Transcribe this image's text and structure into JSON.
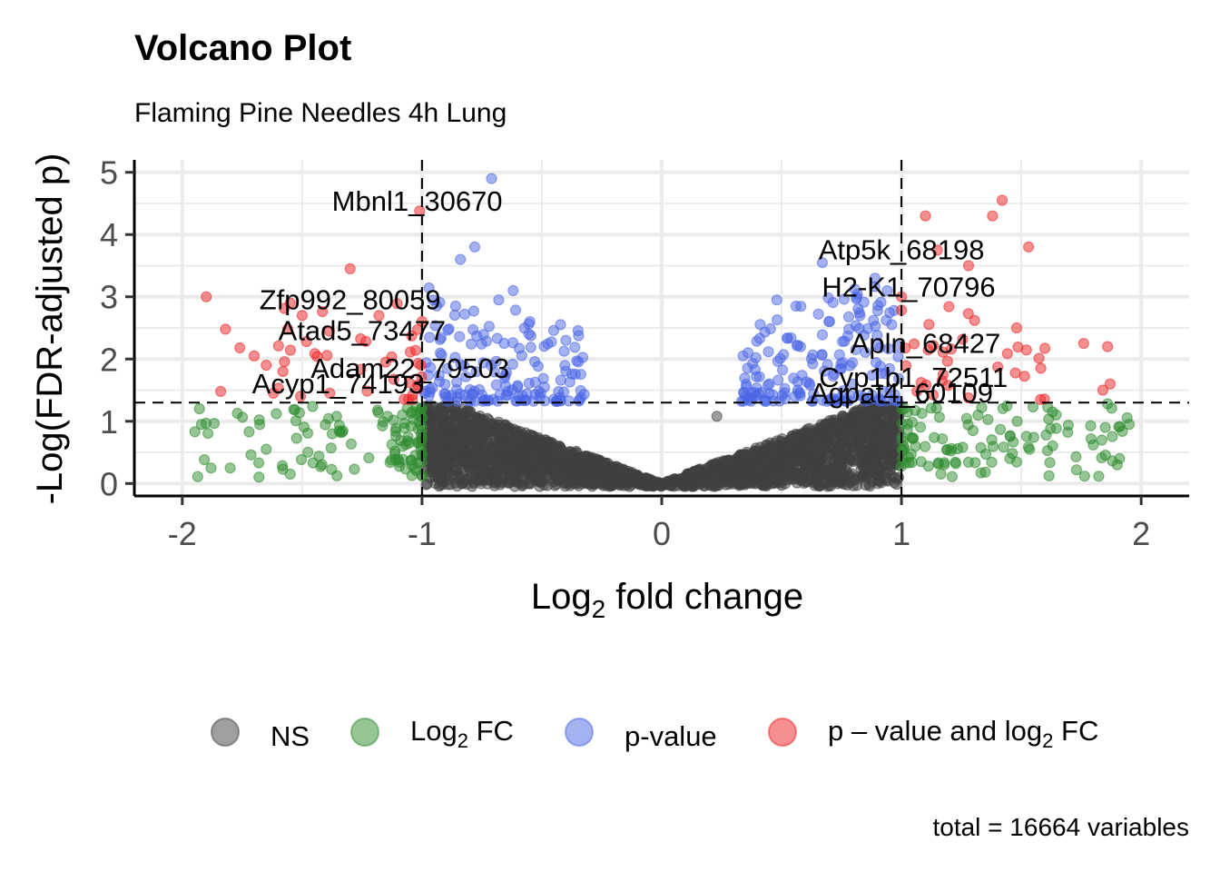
{
  "chart_data": {
    "type": "scatter",
    "title": "Volcano Plot",
    "subtitle": "Flaming Pine Needles 4h Lung",
    "xlabel_prefix": "Log",
    "xlabel_sub": "2",
    "xlabel_suffix": " fold change",
    "ylabel": "-Log(FDR-adjusted p)",
    "xlim": [
      -2.2,
      2.2
    ],
    "ylim": [
      -0.2,
      5.2
    ],
    "x_ticks": [
      -2,
      -1,
      0,
      1,
      2
    ],
    "y_ticks": [
      0,
      1,
      2,
      3,
      4,
      5
    ],
    "x_tick_labels": [
      "-2",
      "-1",
      "0",
      "1",
      "2"
    ],
    "y_tick_labels": [
      "0",
      "1",
      "2",
      "3",
      "4",
      "5"
    ],
    "grid": true,
    "fc_cutoff": 1,
    "p_cutoff": 1.3,
    "colors": {
      "NS": "#3f3f3f",
      "FC": "#2e8b2e",
      "P": "#4a66e6",
      "FC_P": "#ee2222"
    },
    "legend_position": "bottom",
    "legend": {
      "ns": "NS",
      "fc_prefix": "Log",
      "fc_sub": "2",
      "fc_suffix": " FC",
      "p": "p-value",
      "both_prefix": "p – value and log",
      "both_sub": "2",
      "both_suffix": " FC"
    },
    "caption": "total = 16664 variables",
    "labeled_genes": [
      {
        "label": "Mbnl1_30670",
        "x": -1.02,
        "y": 4.38
      },
      {
        "label": "Zfp992_80059",
        "x": -1.3,
        "y": 2.8
      },
      {
        "label": "Atad5_73477",
        "x": -1.25,
        "y": 2.3
      },
      {
        "label": "Adam22_79503",
        "x": -1.05,
        "y": 1.7
      },
      {
        "label": "Acyp1_74193",
        "x": -1.35,
        "y": 1.45
      },
      {
        "label": "Atp5k_68198",
        "x": 1.0,
        "y": 3.6
      },
      {
        "label": "H2-K1_70796",
        "x": 1.03,
        "y": 3.0
      },
      {
        "label": "Apln_68427",
        "x": 1.1,
        "y": 2.1
      },
      {
        "label": "Cyp1b1_72511",
        "x": 1.05,
        "y": 1.55
      },
      {
        "label": "Agpat4_60109",
        "x": 1.0,
        "y": 1.3
      }
    ],
    "highlight_points": [
      {
        "x": -0.71,
        "y": 4.9,
        "group": "P"
      },
      {
        "x": -0.78,
        "y": 3.8,
        "group": "P"
      },
      {
        "x": -0.84,
        "y": 3.6,
        "group": "P"
      },
      {
        "x": -0.62,
        "y": 3.1,
        "group": "P"
      },
      {
        "x": -0.68,
        "y": 2.95,
        "group": "P"
      },
      {
        "x": -0.86,
        "y": 2.85,
        "group": "P"
      },
      {
        "x": -0.55,
        "y": 2.6,
        "group": "P"
      },
      {
        "x": -0.4,
        "y": 2.3,
        "group": "P"
      },
      {
        "x": 0.67,
        "y": 3.55,
        "group": "P"
      },
      {
        "x": 0.48,
        "y": 2.95,
        "group": "P"
      },
      {
        "x": 0.56,
        "y": 2.85,
        "group": "P"
      },
      {
        "x": 0.7,
        "y": 2.6,
        "group": "P"
      },
      {
        "x": 0.36,
        "y": 2.1,
        "group": "P"
      },
      {
        "x": 0.23,
        "y": 1.08,
        "group": "NS"
      },
      {
        "x": -1.01,
        "y": 4.38,
        "group": "FC_P"
      },
      {
        "x": -1.3,
        "y": 3.45,
        "group": "FC_P"
      },
      {
        "x": -1.9,
        "y": 3.0,
        "group": "FC_P"
      },
      {
        "x": -1.82,
        "y": 2.48,
        "group": "FC_P"
      },
      {
        "x": -1.76,
        "y": 2.18,
        "group": "FC_P"
      },
      {
        "x": -1.7,
        "y": 2.05,
        "group": "FC_P"
      },
      {
        "x": -1.65,
        "y": 1.9,
        "group": "FC_P"
      },
      {
        "x": -1.58,
        "y": 1.8,
        "group": "FC_P"
      },
      {
        "x": -1.5,
        "y": 2.7,
        "group": "FC_P"
      },
      {
        "x": -1.55,
        "y": 2.9,
        "group": "FC_P"
      },
      {
        "x": -1.84,
        "y": 1.48,
        "group": "FC_P"
      },
      {
        "x": -1.62,
        "y": 1.45,
        "group": "FC_P"
      },
      {
        "x": 1.42,
        "y": 4.55,
        "group": "FC_P"
      },
      {
        "x": 1.38,
        "y": 4.3,
        "group": "FC_P"
      },
      {
        "x": 1.1,
        "y": 4.3,
        "group": "FC_P"
      },
      {
        "x": 1.53,
        "y": 3.8,
        "group": "FC_P"
      },
      {
        "x": 1.28,
        "y": 3.5,
        "group": "FC_P"
      },
      {
        "x": 1.15,
        "y": 3.75,
        "group": "FC_P"
      },
      {
        "x": 1.76,
        "y": 2.25,
        "group": "FC_P"
      },
      {
        "x": 1.86,
        "y": 2.2,
        "group": "FC_P"
      },
      {
        "x": 1.87,
        "y": 1.6,
        "group": "FC_P"
      },
      {
        "x": 1.84,
        "y": 1.5,
        "group": "FC_P"
      },
      {
        "x": 1.58,
        "y": 1.35,
        "group": "FC_P"
      },
      {
        "x": 1.48,
        "y": 2.5,
        "group": "FC_P"
      },
      {
        "x": 1.0,
        "y": 3.0,
        "group": "FC_P"
      },
      {
        "x": -1.92,
        "y": 0.95,
        "group": "FC"
      },
      {
        "x": -1.88,
        "y": 0.25,
        "group": "FC"
      },
      {
        "x": -1.8,
        "y": 0.25,
        "group": "FC"
      },
      {
        "x": -1.65,
        "y": 0.55,
        "group": "FC"
      },
      {
        "x": -1.55,
        "y": 0.15,
        "group": "FC"
      },
      {
        "x": 1.73,
        "y": 0.22,
        "group": "FC"
      },
      {
        "x": 1.9,
        "y": 0.3,
        "group": "FC"
      },
      {
        "x": 1.91,
        "y": 0.4,
        "group": "FC"
      },
      {
        "x": 1.95,
        "y": 0.95,
        "group": "FC"
      },
      {
        "x": 1.85,
        "y": 0.9,
        "group": "FC"
      },
      {
        "x": 1.8,
        "y": 0.62,
        "group": "FC"
      },
      {
        "x": 1.86,
        "y": 1.28,
        "group": "FC"
      },
      {
        "x": 1.63,
        "y": 1.15,
        "group": "FC"
      }
    ]
  }
}
